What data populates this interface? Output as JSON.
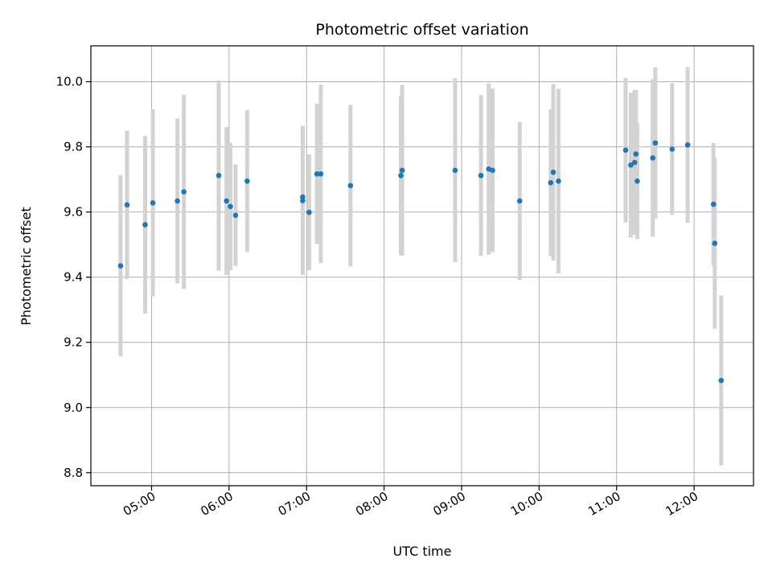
{
  "chart_data": {
    "type": "scatter",
    "title": "Photometric offset variation",
    "xlabel": "UTC time",
    "ylabel": "Photometric offset",
    "x_ticks": [
      "05:00",
      "06:00",
      "07:00",
      "08:00",
      "09:00",
      "10:00",
      "11:00",
      "12:00"
    ],
    "y_ticks": [
      "8.8",
      "9.0",
      "9.2",
      "9.4",
      "9.6",
      "9.8",
      "10.0"
    ],
    "xlim": [
      "04:13",
      "12:46"
    ],
    "ylim": [
      8.76,
      10.11
    ],
    "grid": true,
    "colors": {
      "point": "#1f77b4",
      "errorbar": "#d3d3d3",
      "grid": "#b0b0b0"
    },
    "points": [
      {
        "x": "04:36",
        "y": 9.435,
        "err": 0.278
      },
      {
        "x": "04:41",
        "y": 9.622,
        "err": 0.228
      },
      {
        "x": "04:55",
        "y": 9.561,
        "err": 0.273
      },
      {
        "x": "05:01",
        "y": 9.628,
        "err": 0.287
      },
      {
        "x": "05:20",
        "y": 9.634,
        "err": 0.253
      },
      {
        "x": "05:25",
        "y": 9.662,
        "err": 0.298
      },
      {
        "x": "05:52",
        "y": 9.712,
        "err": 0.292
      },
      {
        "x": "05:58",
        "y": 9.634,
        "err": 0.227
      },
      {
        "x": "06:01",
        "y": 9.617,
        "err": 0.196
      },
      {
        "x": "06:05",
        "y": 9.59,
        "err": 0.156
      },
      {
        "x": "06:14",
        "y": 9.695,
        "err": 0.218
      },
      {
        "x": "06:57",
        "y": 9.646,
        "err": 0.218
      },
      {
        "x": "06:57",
        "y": 9.635,
        "err": 0.228
      },
      {
        "x": "07:02",
        "y": 9.599,
        "err": 0.178
      },
      {
        "x": "07:08",
        "y": 9.717,
        "err": 0.215
      },
      {
        "x": "07:11",
        "y": 9.717,
        "err": 0.274
      },
      {
        "x": "07:34",
        "y": 9.681,
        "err": 0.248
      },
      {
        "x": "08:13",
        "y": 9.712,
        "err": 0.244
      },
      {
        "x": "08:14",
        "y": 9.728,
        "err": 0.262
      },
      {
        "x": "08:55",
        "y": 9.728,
        "err": 0.282
      },
      {
        "x": "09:15",
        "y": 9.712,
        "err": 0.247
      },
      {
        "x": "09:21",
        "y": 9.732,
        "err": 0.263
      },
      {
        "x": "09:24",
        "y": 9.728,
        "err": 0.251
      },
      {
        "x": "09:45",
        "y": 9.634,
        "err": 0.243
      },
      {
        "x": "10:09",
        "y": 9.69,
        "err": 0.225
      },
      {
        "x": "10:11",
        "y": 9.722,
        "err": 0.271
      },
      {
        "x": "10:15",
        "y": 9.695,
        "err": 0.283
      },
      {
        "x": "11:07",
        "y": 9.79,
        "err": 0.222
      },
      {
        "x": "11:11",
        "y": 9.744,
        "err": 0.222
      },
      {
        "x": "11:14",
        "y": 9.752,
        "err": 0.222
      },
      {
        "x": "11:15",
        "y": 9.778,
        "err": 0.197
      },
      {
        "x": "11:16",
        "y": 9.695,
        "err": 0.178
      },
      {
        "x": "11:28",
        "y": 9.766,
        "err": 0.242
      },
      {
        "x": "11:30",
        "y": 9.812,
        "err": 0.232
      },
      {
        "x": "11:43",
        "y": 9.793,
        "err": 0.202
      },
      {
        "x": "11:55",
        "y": 9.806,
        "err": 0.239
      },
      {
        "x": "12:15",
        "y": 9.624,
        "err": 0.188
      },
      {
        "x": "12:16",
        "y": 9.504,
        "err": 0.262
      },
      {
        "x": "12:21",
        "y": 9.083,
        "err": 0.261
      }
    ]
  }
}
